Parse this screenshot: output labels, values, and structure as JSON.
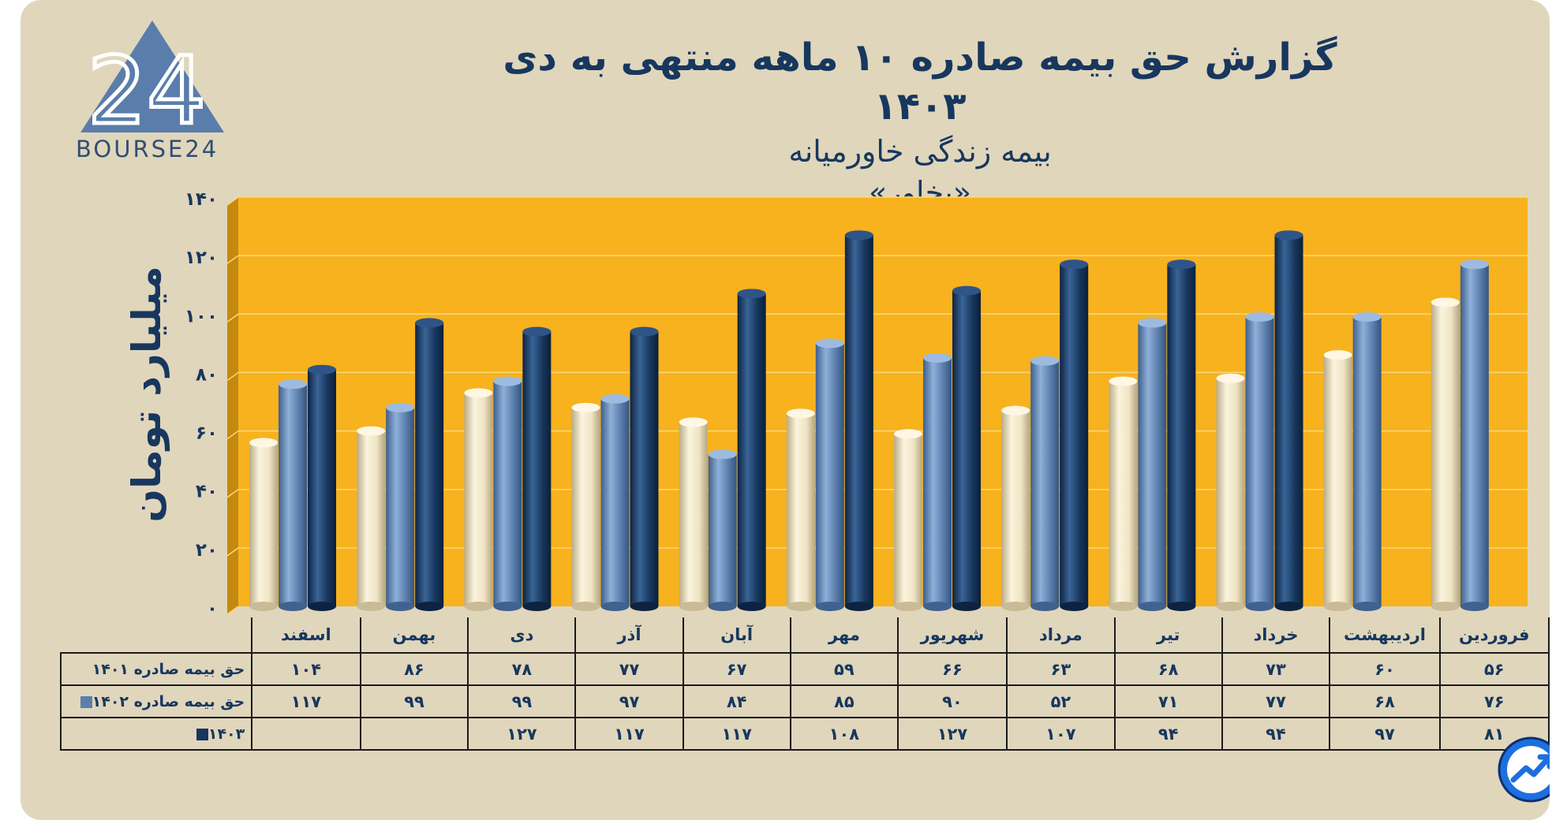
{
  "logo": {
    "text": "BOURSE24",
    "mark": "24"
  },
  "title": {
    "line1": "گزارش  حق بیمه صادره ۱۰ ماهه منتهی به دی ۱۴۰۳",
    "line2": "بیمه زندگی خاورمیانه",
    "line3": "«بخاور»"
  },
  "colors": {
    "background": "#e0d6bc",
    "plot": "#f7b21e",
    "s1401": "#eee3c2",
    "s1402": "#5b7fae",
    "s1403": "#17375e",
    "text": "#17375e"
  },
  "chart_data": {
    "type": "bar",
    "title": "گزارش  حق بیمه صادره ۱۰ ماهه منتهی به دی ۱۴۰۳",
    "ylabel": "میلیارد تومان",
    "ylim": [
      0,
      140
    ],
    "yticks": [
      "۰",
      "۲۰",
      "۴۰",
      "۶۰",
      "۸۰",
      "۱۰۰",
      "۱۲۰",
      "۱۴۰"
    ],
    "categories": [
      "فروردین",
      "اردیبهشت",
      "خرداد",
      "تیر",
      "مرداد",
      "شهریور",
      "مهر",
      "آبان",
      "آذر",
      "دی",
      "بهمن",
      "اسفند"
    ],
    "series": [
      {
        "name": "حق بیمه صادره ۱۴۰۱",
        "values": [
          56,
          60,
          73,
          68,
          63,
          66,
          59,
          67,
          77,
          78,
          86,
          104
        ],
        "labels": [
          "۵۶",
          "۶۰",
          "۷۳",
          "۶۸",
          "۶۳",
          "۶۶",
          "۵۹",
          "۶۷",
          "۷۷",
          "۷۸",
          "۸۶",
          "۱۰۴"
        ]
      },
      {
        "name": "حق بیمه صادره ۱۴۰۲",
        "values": [
          76,
          68,
          77,
          71,
          52,
          90,
          85,
          84,
          97,
          99,
          99,
          117
        ],
        "labels": [
          "۷۶",
          "۶۸",
          "۷۷",
          "۷۱",
          "۵۲",
          "۹۰",
          "۸۵",
          "۸۴",
          "۹۷",
          "۹۹",
          "۹۹",
          "۱۱۷"
        ]
      },
      {
        "name": "۱۴۰۳",
        "values": [
          81,
          97,
          94,
          94,
          107,
          127,
          108,
          117,
          117,
          127,
          null,
          null
        ],
        "labels": [
          "۸۱",
          "۹۷",
          "۹۴",
          "۹۴",
          "۱۰۷",
          "۱۲۷",
          "۱۰۸",
          "۱۱۷",
          "۱۱۷",
          "۱۲۷",
          "",
          ""
        ]
      }
    ]
  }
}
